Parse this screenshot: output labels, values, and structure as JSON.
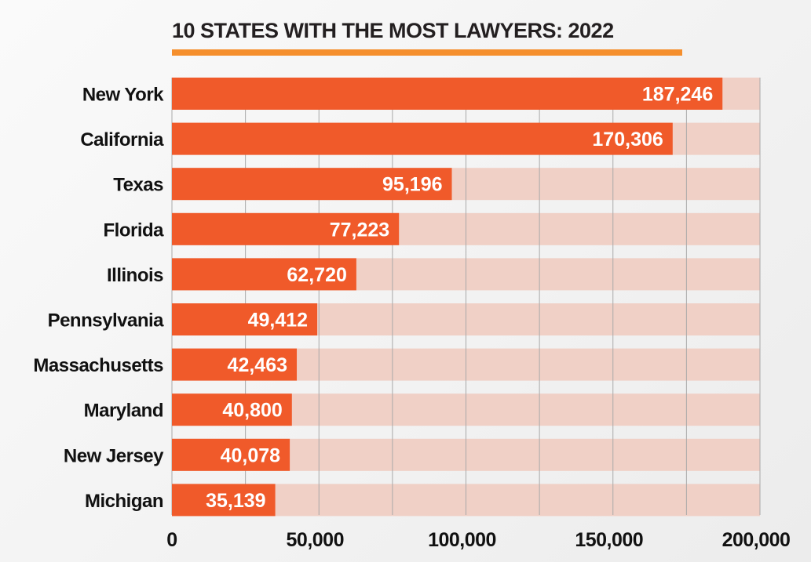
{
  "chart_data": {
    "type": "bar",
    "orientation": "horizontal",
    "title": "10 STATES WITH THE MOST LAWYERS: 2022",
    "categories": [
      "New York",
      "California",
      "Texas",
      "Florida",
      "Illinois",
      "Pennsylvania",
      "Massachusetts",
      "Maryland",
      "New Jersey",
      "Michigan"
    ],
    "values": [
      187246,
      170306,
      95196,
      77223,
      62720,
      49412,
      42463,
      40800,
      40078,
      35139
    ],
    "value_labels": [
      "187,246",
      "170,306",
      "95,196",
      "77,223",
      "62,720",
      "49,412",
      "42,463",
      "40,800",
      "40,078",
      "35,139"
    ],
    "xlim": [
      0,
      200000
    ],
    "xticks": [
      0,
      50000,
      100000,
      150000,
      200000
    ],
    "xtick_labels": [
      "0",
      "50,000",
      "100,000",
      "150,000",
      "200,000"
    ],
    "minor_gridlines_every": 25000,
    "grid": true,
    "xlabel": "",
    "ylabel": "",
    "colors": {
      "bar": "#f05a2a",
      "track": "#f0d0c6",
      "title_rule": "#f58f2d",
      "gridline": "#a9a9a9"
    }
  }
}
